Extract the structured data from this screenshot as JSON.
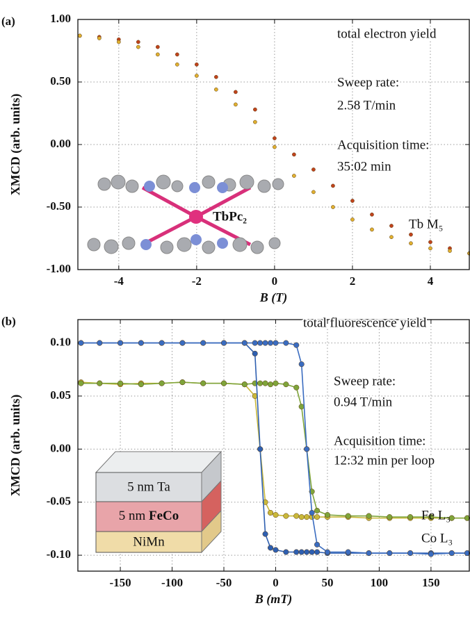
{
  "chart_data": [
    {
      "type": "scatter",
      "panel_label": "(a)",
      "xlabel": "B (T)",
      "ylabel": "XMCD (arb. units)",
      "xlim": [
        -5.05,
        5
      ],
      "ylim": [
        -1,
        1
      ],
      "xticks": [
        -4,
        -2,
        0,
        2,
        4
      ],
      "yticks": [
        {
          "value": 1,
          "label": "1.00"
        },
        {
          "value": 0.5,
          "label": "0.50"
        },
        {
          "value": 0,
          "label": "0.00"
        },
        {
          "value": -0.5,
          "label": "-0.50"
        },
        {
          "value": -1,
          "label": "-1.00"
        }
      ],
      "grid": true,
      "annotations": [
        "total electron yield",
        "Sweep rate:",
        "2.58 T/min",
        "Acquisition time:",
        "35:02 min",
        "Tb M₅",
        "TbPc₂"
      ],
      "x": [
        -5,
        -4.5,
        -4,
        -3.5,
        -3,
        -2.5,
        -2,
        -1.5,
        -1,
        -0.5,
        0,
        0.5,
        1,
        1.5,
        2,
        2.5,
        3,
        3.5,
        4,
        4.5,
        5
      ],
      "series": [
        {
          "color": "#c0431c",
          "values": [
            0.87,
            0.86,
            0.84,
            0.82,
            0.78,
            0.72,
            0.64,
            0.54,
            0.42,
            0.28,
            0.05,
            -0.08,
            -0.2,
            -0.33,
            -0.45,
            -0.56,
            -0.65,
            -0.72,
            -0.78,
            -0.83,
            -0.87
          ]
        },
        {
          "color": "#e0b030",
          "values": [
            0.87,
            0.85,
            0.82,
            0.78,
            0.72,
            0.64,
            0.55,
            0.44,
            0.32,
            0.18,
            -0.02,
            -0.25,
            -0.38,
            -0.5,
            -0.6,
            -0.68,
            -0.74,
            -0.79,
            -0.83,
            -0.85,
            -0.87
          ]
        }
      ]
    },
    {
      "type": "line",
      "panel_label": "(b)",
      "xlabel": "B (mT)",
      "ylabel": "XMCD (arb. units)",
      "xlim": [
        -191,
        187
      ],
      "ylim": [
        -0.115,
        0.122
      ],
      "xticks": [
        -150,
        -100,
        -50,
        0,
        50,
        100,
        150
      ],
      "yticks": [
        {
          "value": 0.1,
          "label": "0.10"
        },
        {
          "value": 0.05,
          "label": "0.05"
        },
        {
          "value": 0,
          "label": "0.00"
        },
        {
          "value": -0.05,
          "label": "-0.05"
        },
        {
          "value": -0.1,
          "label": "-0.10"
        }
      ],
      "grid": true,
      "annotations": [
        "total fluorescence yield",
        "Sweep rate:",
        "0.94 T/min",
        "Acquisition time:",
        "12:32 min per loop"
      ],
      "stack": {
        "top": "5 nm Ta",
        "middle": [
          "5 nm",
          "FeCo"
        ],
        "bottom": "NiMn"
      },
      "x": [
        -188,
        -170,
        -150,
        -130,
        -110,
        -90,
        -70,
        -50,
        -30,
        -20,
        -15,
        -10,
        -5,
        0,
        10,
        20,
        25,
        30,
        35,
        40,
        50,
        70,
        90,
        110,
        130,
        150,
        170,
        185
      ],
      "series": [
        {
          "name": "Fe L₃",
          "color": "#c9b83a",
          "values": [
            0.063,
            0.062,
            0.061,
            0.062,
            0.062,
            0.063,
            0.062,
            0.062,
            0.061,
            0.05,
            0.0,
            -0.05,
            -0.06,
            -0.062,
            -0.063,
            -0.063,
            -0.064,
            -0.064,
            -0.064,
            -0.064,
            -0.064,
            -0.064,
            -0.065,
            -0.065,
            -0.065,
            -0.065,
            -0.065,
            -0.065
          ]
        },
        {
          "color": "#7fa43a",
          "values": [
            0.062,
            0.062,
            0.062,
            0.061,
            0.062,
            0.063,
            0.062,
            0.062,
            0.061,
            0.062,
            0.062,
            0.062,
            0.061,
            0.062,
            0.061,
            0.058,
            0.04,
            0.0,
            -0.04,
            -0.058,
            -0.062,
            -0.063,
            -0.063,
            -0.064,
            -0.064,
            -0.064,
            -0.065,
            -0.065
          ]
        },
        {
          "name": "Co L₃",
          "color": "#2e5fb0",
          "values": [
            0.1,
            0.1,
            0.1,
            0.1,
            0.1,
            0.1,
            0.1,
            0.1,
            0.1,
            0.09,
            0.0,
            -0.08,
            -0.093,
            -0.095,
            -0.097,
            -0.097,
            -0.097,
            -0.097,
            -0.097,
            -0.097,
            -0.098,
            -0.098,
            -0.098,
            -0.098,
            -0.098,
            -0.098,
            -0.098,
            -0.098
          ]
        },
        {
          "color": "#3a6cc0",
          "values": [
            0.1,
            0.1,
            0.1,
            0.1,
            0.1,
            0.1,
            0.1,
            0.1,
            0.1,
            0.1,
            0.1,
            0.1,
            0.1,
            0.1,
            0.1,
            0.098,
            0.08,
            0.0,
            -0.06,
            -0.09,
            -0.097,
            -0.097,
            -0.098,
            -0.098,
            -0.098,
            -0.099,
            -0.098,
            -0.098
          ]
        }
      ]
    }
  ]
}
